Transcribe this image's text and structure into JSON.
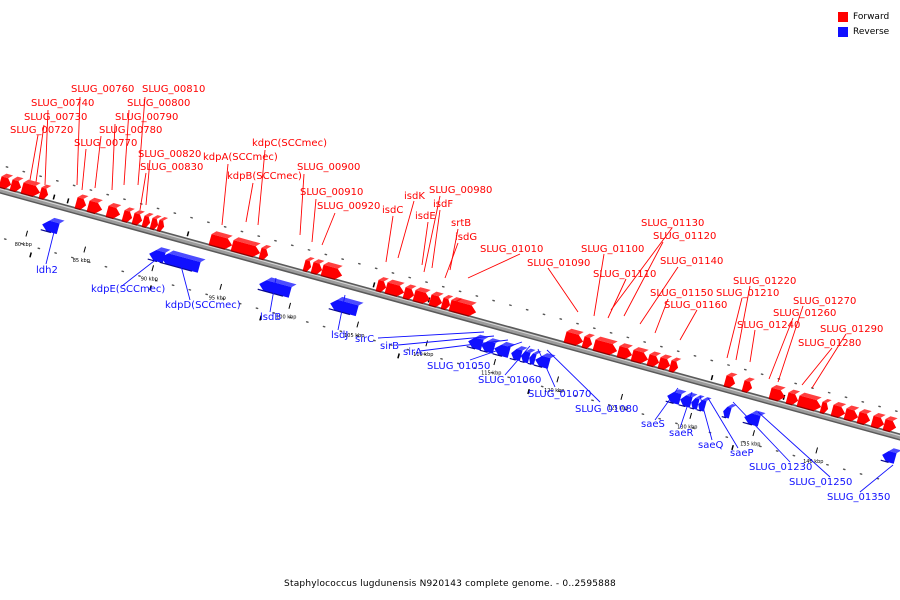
{
  "legend": {
    "forward": {
      "label": "Forward",
      "color": "#ff0000"
    },
    "reverse": {
      "label": "Reverse",
      "color": "#1010ff"
    }
  },
  "caption": "Staphylococcus lugdunensis N920143 complete genome. - 0..2595888",
  "colors": {
    "forward": "#ff0000",
    "reverse": "#1010ff",
    "backbone": "#808080"
  },
  "ticks": [
    {
      "label": "80 kbp"
    },
    {
      "label": "85 kbp"
    },
    {
      "label": "90 kbp"
    },
    {
      "label": "95 kbp"
    },
    {
      "label": "100 kbp"
    },
    {
      "label": "105 kbp"
    },
    {
      "label": "110 kbp"
    },
    {
      "label": "115 kbp"
    },
    {
      "label": "120 kbp"
    },
    {
      "label": "125 kbp"
    },
    {
      "label": "130 kbp"
    },
    {
      "label": "135 kbp"
    },
    {
      "label": "140 kbp"
    }
  ],
  "forward_labels": [
    "SLUG_00760",
    "SLUG_00810",
    "SLUG_00740",
    "SLUG_00800",
    "SLUG_00730",
    "SLUG_00790",
    "SLUG_00720",
    "SLUG_00780",
    "SLUG_00770",
    "kdpC(SCCmec)",
    "SLUG_00820",
    "kdpA(SCCmec)",
    "SLUG_00830",
    "SLUG_00900",
    "kdpB(SCCmec)",
    "SLUG_00980",
    "SLUG_00910",
    "isdK",
    "isdF",
    "SLUG_00920",
    "isdC",
    "isdE",
    "srtB",
    "isdG",
    "SLUG_01010",
    "SLUG_01090",
    "SLUG_01130",
    "SLUG_01120",
    "SLUG_01100",
    "SLUG_01140",
    "SLUG_01110",
    "SLUG_01150",
    "SLUG_01160",
    "SLUG_01220",
    "SLUG_01210",
    "SLUG_01270",
    "SLUG_01260",
    "SLUG_01240",
    "SLUG_01290",
    "SLUG_01280"
  ],
  "reverse_labels": [
    "ldh2",
    "kdpE(SCCmec)",
    "kdpD(SCCmec)",
    "lsdB",
    "lsdJ",
    "sirC",
    "sirB",
    "sirA",
    "SLUG_01050",
    "SLUG_01060",
    "SLUG_01070",
    "SLUG_01080",
    "saeS",
    "saeR",
    "saeQ",
    "saeP",
    "SLUG_01230",
    "SLUG_01250",
    "SLUG_01350"
  ]
}
